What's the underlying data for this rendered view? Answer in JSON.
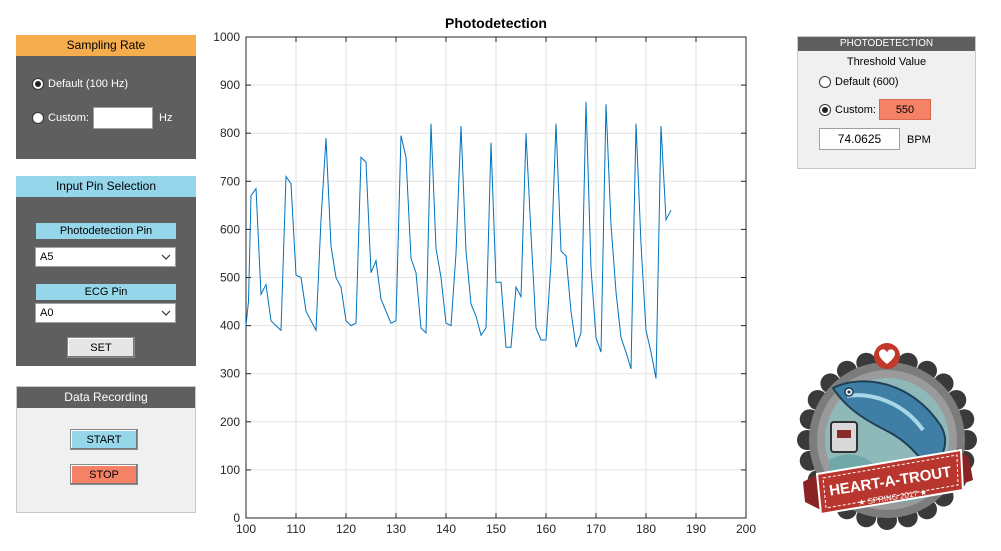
{
  "colors": {
    "panel_dark": "#5f5f5f",
    "panel_light": "#f0f0f0",
    "orange_head": "#f5ad4e",
    "blue": "#96d6ea",
    "salmon": "#f58266",
    "plot_line": "#0072bd"
  },
  "sampling": {
    "title": "Sampling Rate",
    "default_label": "Default (100 Hz)",
    "custom_label": "Custom:",
    "custom_value": "",
    "unit": "Hz",
    "selected": "default"
  },
  "input_pins": {
    "title": "Input Pin Selection",
    "photo_label": "Photodetection Pin",
    "photo_value": "A5",
    "ecg_label": "ECG Pin",
    "ecg_value": "A0",
    "set_label": "SET"
  },
  "recording": {
    "title": "Data Recording",
    "start_label": "START",
    "stop_label": "STOP"
  },
  "threshold": {
    "header": "PHOTODETECTION",
    "title": "Threshold Value",
    "default_label": "Default (600)",
    "custom_label": "Custom:",
    "custom_value": "550",
    "bpm_value": "74.0625",
    "bpm_unit": "BPM",
    "selected": "custom"
  },
  "logo": {
    "text": "HEART-A-TROUT",
    "subtext": "★ SPRING 2017 ★"
  },
  "chart_data": {
    "type": "line",
    "title": "Photodetection",
    "xlabel": "",
    "ylabel": "",
    "xlim": [
      100,
      200
    ],
    "ylim": [
      0,
      1000
    ],
    "xticks": [
      100,
      110,
      120,
      130,
      140,
      150,
      160,
      170,
      180,
      190,
      200
    ],
    "yticks": [
      0,
      100,
      200,
      300,
      400,
      500,
      600,
      700,
      800,
      900,
      1000
    ],
    "grid": true,
    "series": [
      {
        "color": "#0072bd",
        "x": [
          100,
          100.5,
          101,
          102,
          103,
          104,
          105,
          106,
          107,
          108,
          109,
          110,
          111,
          112,
          113,
          114,
          115,
          116,
          117,
          118,
          119,
          120,
          121,
          122,
          123,
          124,
          125,
          126,
          127,
          128,
          129,
          130,
          131,
          132,
          133,
          134,
          135,
          136,
          137,
          138,
          139,
          140,
          141,
          142,
          143,
          144,
          145,
          146,
          147,
          148,
          149,
          150,
          151,
          152,
          153,
          154,
          155,
          156,
          157,
          158,
          159,
          160,
          161,
          162,
          163,
          164,
          165,
          166,
          167,
          168,
          169,
          170,
          171,
          172,
          173,
          174,
          175,
          176,
          177,
          178,
          179,
          180,
          181,
          182,
          183,
          184,
          185
        ],
        "y": [
          400,
          450,
          670,
          685,
          465,
          485,
          410,
          400,
          390,
          710,
          695,
          505,
          500,
          430,
          410,
          390,
          620,
          790,
          565,
          500,
          480,
          410,
          400,
          405,
          750,
          740,
          510,
          535,
          455,
          430,
          405,
          410,
          795,
          750,
          540,
          510,
          395,
          385,
          820,
          560,
          500,
          405,
          400,
          550,
          815,
          555,
          445,
          420,
          380,
          395,
          780,
          490,
          490,
          355,
          355,
          480,
          460,
          800,
          590,
          395,
          370,
          370,
          530,
          820,
          555,
          545,
          430,
          355,
          385,
          865,
          520,
          375,
          345,
          860,
          610,
          470,
          375,
          345,
          310,
          820,
          570,
          390,
          345,
          290,
          815,
          620,
          640
        ]
      }
    ]
  }
}
